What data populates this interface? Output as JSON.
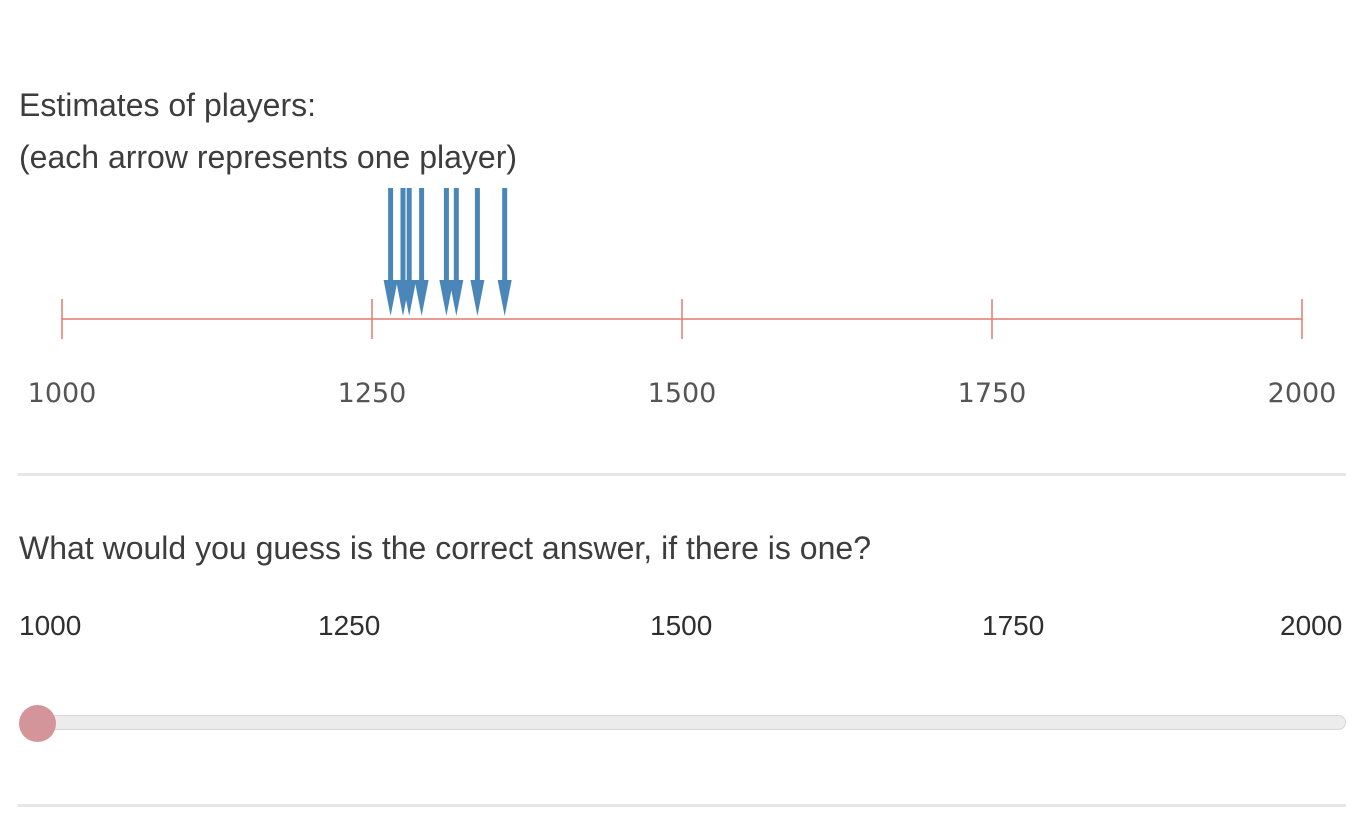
{
  "estimates": {
    "title": "Estimates of players:",
    "subtitle": "(each arrow represents one player)"
  },
  "chart_data": {
    "type": "scatter",
    "xlim": [
      1000,
      2000
    ],
    "x_ticks": [
      "1000",
      "1250",
      "1500",
      "1750",
      "2000"
    ],
    "estimates": [
      1265,
      1275,
      1280,
      1290,
      1310,
      1318,
      1335,
      1357
    ],
    "arrow_color": "#4a86b8",
    "axis_color": "#e07b6d"
  },
  "question": {
    "text": "What would you guess is the correct answer, if there is one?"
  },
  "slider": {
    "min": 1000,
    "max": 2000,
    "value": 1000,
    "tick_labels": [
      "1000",
      "1250",
      "1500",
      "1750",
      "2000"
    ],
    "thumb_color": "#d4959a"
  }
}
